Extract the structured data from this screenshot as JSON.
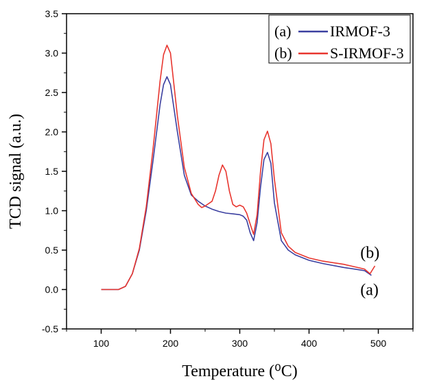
{
  "chart_data": {
    "type": "line",
    "xlabel": "Temperature (⁰C)",
    "ylabel": "TCD signal (a.u.)",
    "xlim": [
      50,
      550
    ],
    "ylim": [
      -0.5,
      3.5
    ],
    "xticks": [
      100,
      200,
      300,
      400,
      500
    ],
    "yticks": [
      -0.5,
      0.0,
      0.5,
      1.0,
      1.5,
      2.0,
      2.5,
      3.0,
      3.5
    ],
    "ytick_labels": [
      "-0.5",
      "0.0",
      "0.5",
      "1.0",
      "1.5",
      "2.0",
      "2.5",
      "3.0",
      "3.5"
    ],
    "legend_position": "top-right",
    "series": [
      {
        "name": "IRMOF-3",
        "legend_prefix": "(a)",
        "color": "#3a3fa0",
        "x": [
          100,
          125,
          135,
          145,
          155,
          165,
          175,
          185,
          190,
          195,
          200,
          210,
          220,
          230,
          240,
          250,
          260,
          270,
          280,
          290,
          300,
          305,
          310,
          315,
          320,
          325,
          330,
          335,
          340,
          345,
          350,
          360,
          370,
          380,
          400,
          420,
          450,
          480,
          490
        ],
        "y": [
          0.0,
          0.0,
          0.04,
          0.2,
          0.5,
          1.0,
          1.65,
          2.35,
          2.6,
          2.7,
          2.6,
          2.0,
          1.45,
          1.2,
          1.12,
          1.06,
          1.02,
          0.99,
          0.97,
          0.96,
          0.95,
          0.93,
          0.88,
          0.72,
          0.62,
          0.85,
          1.3,
          1.65,
          1.74,
          1.6,
          1.1,
          0.62,
          0.5,
          0.44,
          0.37,
          0.33,
          0.28,
          0.24,
          0.18
        ]
      },
      {
        "name": "S-IRMOF-3",
        "legend_prefix": "(b)",
        "color": "#e8352e",
        "x": [
          100,
          125,
          135,
          145,
          155,
          165,
          175,
          185,
          190,
          195,
          200,
          210,
          220,
          230,
          240,
          245,
          250,
          260,
          265,
          270,
          275,
          280,
          285,
          290,
          295,
          300,
          305,
          310,
          315,
          320,
          325,
          330,
          335,
          340,
          345,
          350,
          360,
          370,
          380,
          400,
          420,
          450,
          480,
          488,
          495
        ],
        "y": [
          0.0,
          0.0,
          0.04,
          0.2,
          0.52,
          1.05,
          1.8,
          2.65,
          2.98,
          3.1,
          3.0,
          2.2,
          1.55,
          1.22,
          1.08,
          1.04,
          1.06,
          1.12,
          1.25,
          1.45,
          1.58,
          1.5,
          1.25,
          1.08,
          1.05,
          1.07,
          1.05,
          0.97,
          0.83,
          0.7,
          0.95,
          1.5,
          1.9,
          2.01,
          1.85,
          1.4,
          0.72,
          0.55,
          0.47,
          0.4,
          0.36,
          0.32,
          0.26,
          0.2,
          0.3
        ]
      }
    ],
    "annotations": [
      {
        "text": "(b)",
        "x": 474,
        "y": 0.47
      },
      {
        "text": "(a)",
        "x": 474,
        "y": 0.0
      }
    ]
  }
}
